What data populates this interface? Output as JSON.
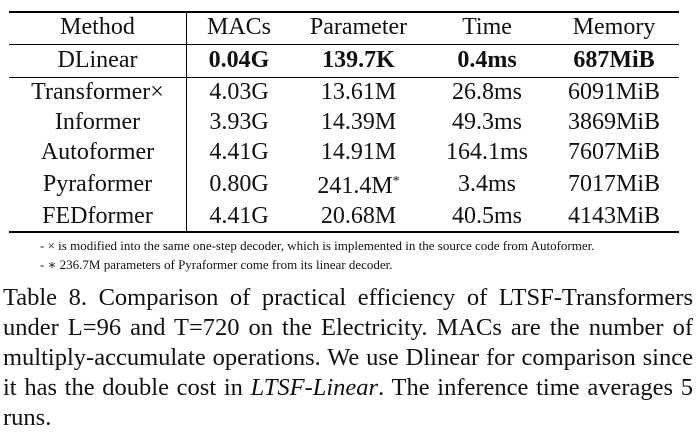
{
  "table": {
    "headers": [
      "Method",
      "MACs",
      "Parameter",
      "Time",
      "Memory"
    ],
    "rows": [
      {
        "method": "DLinear",
        "macs": "0.04G",
        "params": "139.7K",
        "params_mark": "",
        "time": "0.4ms",
        "memory": "687MiB"
      },
      {
        "method": "Transformer×",
        "macs": "4.03G",
        "params": "13.61M",
        "params_mark": "",
        "time": "26.8ms",
        "memory": "6091MiB"
      },
      {
        "method": "Informer",
        "macs": "3.93G",
        "params": "14.39M",
        "params_mark": "",
        "time": "49.3ms",
        "memory": "3869MiB"
      },
      {
        "method": "Autoformer",
        "macs": "4.41G",
        "params": "14.91M",
        "params_mark": "",
        "time": "164.1ms",
        "memory": "7607MiB"
      },
      {
        "method": "Pyraformer",
        "macs": "0.80G",
        "params": "241.4M",
        "params_mark": "*",
        "time": "3.4ms",
        "memory": "7017MiB"
      },
      {
        "method": "FEDformer",
        "macs": "4.41G",
        "params": "20.68M",
        "params_mark": "",
        "time": "40.5ms",
        "memory": "4143MiB"
      }
    ]
  },
  "notes": [
    "- × is modified into the same one-step decoder, which is implemented in the source code from Autoformer.",
    "- ∗ 236.7M parameters of Pyraformer come from its linear decoder."
  ],
  "caption": {
    "part1": "Table 8. Comparison of practical efficiency of LTSF-Transformers under L=96 and T=720 on the Electricity. MACs are the number of multiply-accumulate operations. We use Dlinear for comparison since it has the double cost in ",
    "italic": "LTSF-Linear",
    "part2": ". The inference time averages 5 runs."
  }
}
